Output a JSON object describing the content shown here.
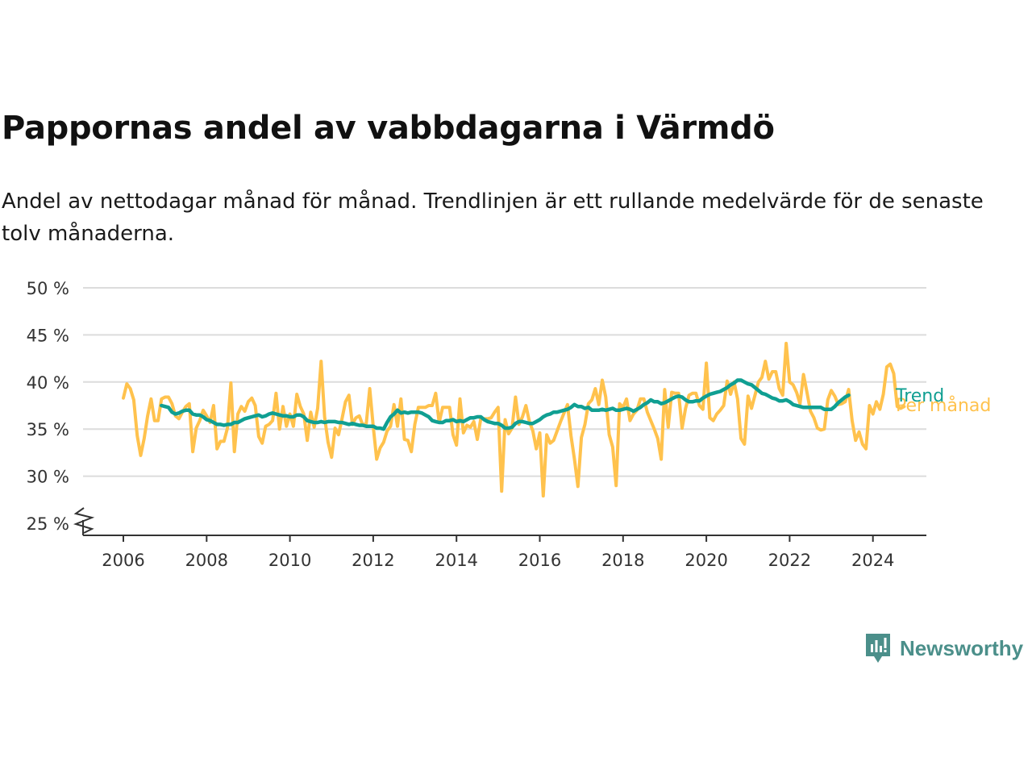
{
  "title": "Pappornas andel av vabbdagarna i Värmdö",
  "subtitle": "Andel av nettodagar månad för månad. Trendlinjen är ett rullande medelvärde för de senaste tolv månaderna.",
  "brand": {
    "name": "Newsworthy",
    "icon": "newsworthy-logo-icon",
    "color": "#4b8f8a"
  },
  "chart_data": {
    "type": "line",
    "x_start": "2006-01",
    "x_interval": "month",
    "x_ticks": [
      "2006",
      "2008",
      "2010",
      "2012",
      "2014",
      "2016",
      "2018",
      "2020",
      "2022",
      "2024"
    ],
    "y_ticks": [
      "25 %",
      "30 %",
      "35 %",
      "40 %",
      "45 %",
      "50 %"
    ],
    "ylim": [
      25,
      50
    ],
    "y_axis_break": true,
    "grid": "horizontal",
    "series": [
      {
        "name": "Per månad",
        "color": "#ffc24d",
        "values": [
          38.3,
          39.8,
          39.3,
          38.1,
          34.3,
          32.2,
          34.0,
          36.4,
          38.2,
          35.9,
          35.9,
          38.2,
          38.4,
          38.4,
          37.7,
          36.4,
          36.1,
          36.8,
          37.4,
          37.7,
          32.6,
          35.1,
          35.9,
          37.0,
          36.4,
          35.7,
          37.5,
          32.9,
          33.7,
          33.7,
          35.1,
          39.9,
          32.6,
          36.6,
          37.4,
          36.9,
          37.9,
          38.3,
          37.5,
          34.2,
          33.5,
          35.3,
          35.5,
          35.9,
          38.8,
          35.0,
          37.4,
          35.3,
          36.6,
          35.3,
          38.7,
          37.4,
          36.6,
          33.8,
          36.8,
          35.2,
          37.2,
          42.2,
          36.3,
          33.6,
          32.0,
          35.1,
          34.4,
          36.1,
          37.9,
          38.6,
          35.5,
          36.2,
          36.4,
          35.4,
          35.6,
          39.3,
          35.3,
          31.8,
          33.0,
          33.6,
          34.8,
          35.3,
          37.6,
          35.3,
          38.2,
          33.9,
          33.8,
          32.6,
          35.5,
          37.3,
          37.3,
          37.3,
          37.5,
          37.5,
          38.8,
          35.7,
          37.3,
          37.3,
          37.3,
          34.4,
          33.3,
          38.2,
          34.6,
          35.4,
          35.2,
          35.8,
          33.9,
          36.1,
          36.1,
          36.1,
          36.2,
          36.8,
          37.3,
          28.4,
          36.0,
          34.5,
          35.1,
          38.4,
          35.5,
          36.3,
          37.5,
          35.8,
          34.8,
          32.9,
          34.6,
          27.9,
          34.4,
          33.5,
          33.8,
          34.8,
          35.8,
          36.7,
          37.6,
          34.3,
          31.8,
          28.9,
          34.1,
          35.5,
          37.7,
          38.1,
          39.3,
          37.6,
          40.2,
          38.4,
          34.4,
          33.1,
          29.0,
          37.7,
          37.3,
          38.2,
          35.9,
          36.6,
          37.0,
          38.2,
          38.2,
          36.8,
          35.9,
          35.0,
          34.0,
          31.8,
          39.2,
          35.2,
          38.9,
          38.8,
          38.8,
          35.1,
          37.2,
          38.6,
          38.8,
          38.8,
          37.5,
          37.1,
          42.0,
          36.2,
          35.9,
          36.6,
          37.0,
          37.5,
          40.1,
          38.7,
          40.0,
          38.2,
          34.0,
          33.4,
          38.5,
          37.2,
          38.6,
          40.0,
          40.5,
          42.2,
          40.3,
          41.1,
          41.1,
          39.3,
          38.6,
          44.1,
          40.0,
          39.7,
          38.9,
          37.7,
          40.8,
          38.9,
          36.9,
          36.2,
          35.1,
          34.9,
          35.0,
          38.1,
          39.1,
          38.5,
          37.6,
          37.7,
          37.9,
          39.2,
          35.9,
          33.8,
          34.7,
          33.4,
          32.9,
          37.5,
          36.6,
          37.9,
          37.1,
          38.7,
          41.6,
          41.9,
          40.9,
          37.4,
          37.2,
          37.4
        ]
      },
      {
        "name": "Trend",
        "color": "#109f92",
        "values": [
          null,
          null,
          null,
          null,
          null,
          null,
          null,
          null,
          null,
          null,
          null,
          37.5,
          37.4,
          37.3,
          36.8,
          36.6,
          36.7,
          36.9,
          37.0,
          37.0,
          36.6,
          36.5,
          36.5,
          36.3,
          36.0,
          35.9,
          35.7,
          35.5,
          35.5,
          35.4,
          35.5,
          35.5,
          35.7,
          35.7,
          35.9,
          36.1,
          36.2,
          36.3,
          36.4,
          36.5,
          36.3,
          36.4,
          36.6,
          36.7,
          36.6,
          36.5,
          36.4,
          36.4,
          36.3,
          36.3,
          36.5,
          36.5,
          36.3,
          35.9,
          35.8,
          35.7,
          35.7,
          35.8,
          35.7,
          35.8,
          35.8,
          35.8,
          35.7,
          35.7,
          35.6,
          35.5,
          35.6,
          35.5,
          35.4,
          35.4,
          35.3,
          35.3,
          35.3,
          35.1,
          35.1,
          35.0,
          35.7,
          36.3,
          36.6,
          37.0,
          36.7,
          36.8,
          36.7,
          36.8,
          36.8,
          36.8,
          36.7,
          36.5,
          36.3,
          35.9,
          35.8,
          35.7,
          35.7,
          35.9,
          35.9,
          36.0,
          35.8,
          35.9,
          35.8,
          36.0,
          36.2,
          36.2,
          36.3,
          36.3,
          36.0,
          35.8,
          35.7,
          35.6,
          35.6,
          35.4,
          35.1,
          35.1,
          35.2,
          35.6,
          35.8,
          35.8,
          35.7,
          35.6,
          35.6,
          35.8,
          36.0,
          36.3,
          36.5,
          36.6,
          36.8,
          36.8,
          36.9,
          37.0,
          37.1,
          37.3,
          37.6,
          37.4,
          37.4,
          37.2,
          37.3,
          37.0,
          37.0,
          37.0,
          37.1,
          37.0,
          37.1,
          37.2,
          37.0,
          37.0,
          37.1,
          37.2,
          37.1,
          36.9,
          37.1,
          37.3,
          37.6,
          37.8,
          38.1,
          37.9,
          37.9,
          37.7,
          37.8,
          38.0,
          38.2,
          38.4,
          38.5,
          38.4,
          38.1,
          37.9,
          37.9,
          38.0,
          38.0,
          38.3,
          38.5,
          38.7,
          38.8,
          38.9,
          39.0,
          39.2,
          39.4,
          39.7,
          39.9,
          40.2,
          40.2,
          40.0,
          39.8,
          39.7,
          39.4,
          39.1,
          38.8,
          38.7,
          38.5,
          38.3,
          38.2,
          38.0,
          38.0,
          38.1,
          37.9,
          37.6,
          37.5,
          37.4,
          37.3,
          37.3,
          37.3,
          37.3,
          37.3,
          37.3,
          37.1,
          37.1,
          37.1,
          37.4,
          37.8,
          38.1,
          38.4,
          38.6
        ]
      }
    ]
  }
}
